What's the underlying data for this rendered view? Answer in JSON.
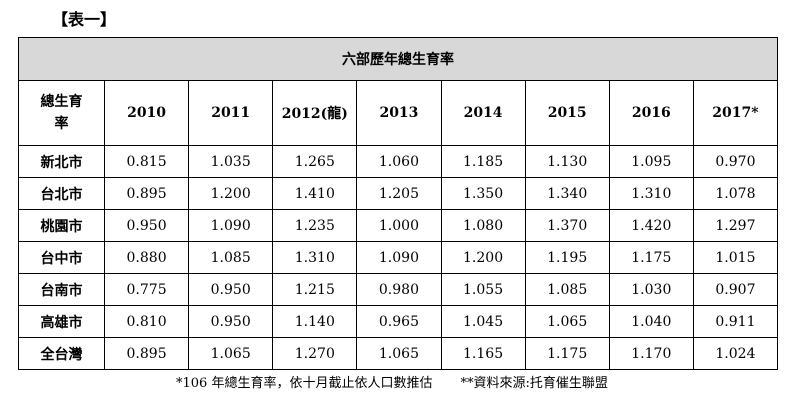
{
  "caption": "【表一】",
  "table": {
    "title": "六部歷年總生育率",
    "corner_label": "總生育率",
    "years": [
      "2010",
      "2011",
      "2012(龍)",
      "2013",
      "2014",
      "2015",
      "2016",
      "2017*"
    ],
    "rows": [
      {
        "city": "新北市",
        "values": [
          "0.815",
          "1.035",
          "1.265",
          "1.060",
          "1.185",
          "1.130",
          "1.095",
          "0.970"
        ]
      },
      {
        "city": "台北市",
        "values": [
          "0.895",
          "1.200",
          "1.410",
          "1.205",
          "1.350",
          "1.340",
          "1.310",
          "1.078"
        ]
      },
      {
        "city": "桃園市",
        "values": [
          "0.950",
          "1.090",
          "1.235",
          "1.000",
          "1.080",
          "1.370",
          "1.420",
          "1.297"
        ]
      },
      {
        "city": "台中市",
        "values": [
          "0.880",
          "1.085",
          "1.310",
          "1.090",
          "1.200",
          "1.195",
          "1.175",
          "1.015"
        ]
      },
      {
        "city": "台南市",
        "values": [
          "0.775",
          "0.950",
          "1.215",
          "0.980",
          "1.055",
          "1.085",
          "1.030",
          "0.907"
        ]
      },
      {
        "city": "高雄市",
        "values": [
          "0.810",
          "0.950",
          "1.140",
          "0.965",
          "1.045",
          "1.065",
          "1.040",
          "0.911"
        ]
      },
      {
        "city": "全台灣",
        "values": [
          "0.895",
          "1.065",
          "1.270",
          "1.065",
          "1.165",
          "1.175",
          "1.170",
          "1.024"
        ]
      }
    ]
  },
  "footnote": {
    "note1": "*106 年總生育率，依十月截止依人口數推估",
    "note2": "**資料來源:托育催生聯盟"
  }
}
